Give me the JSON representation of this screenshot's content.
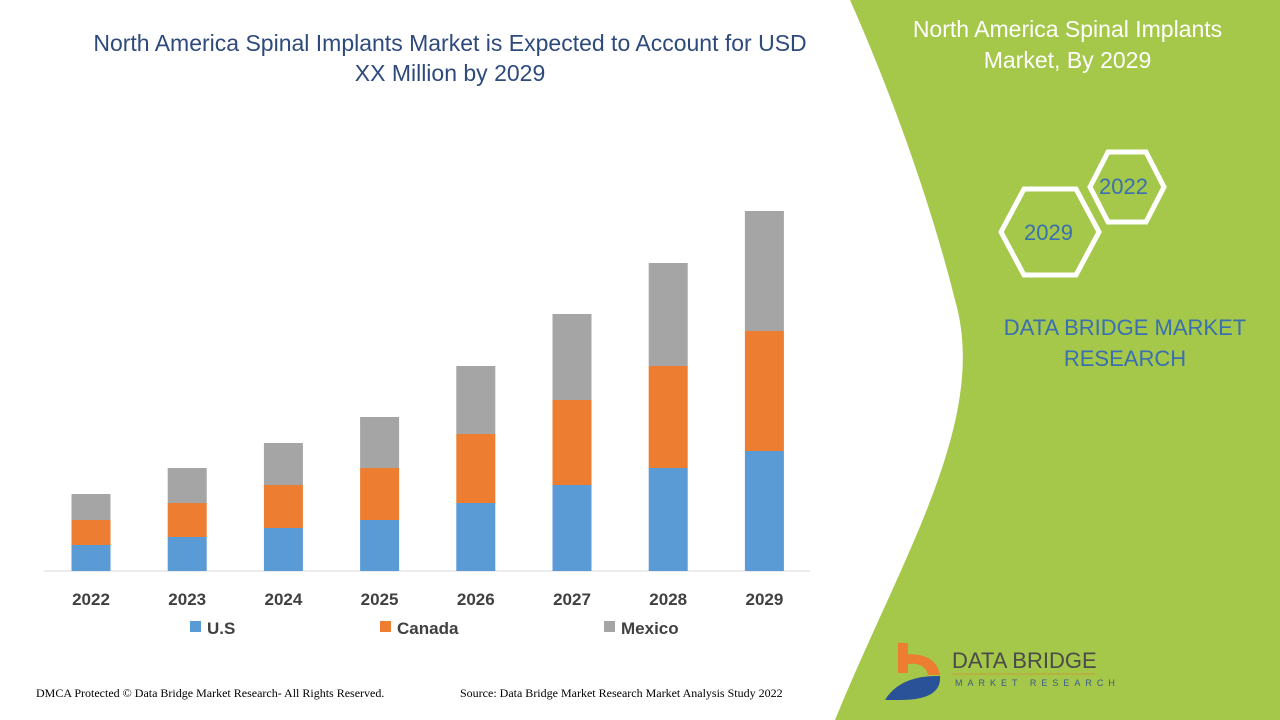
{
  "title": "North America Spinal Implants Market is Expected to Account for USD XX Million by 2029",
  "side_panel": {
    "title": "North America Spinal Implants Market, By 2029",
    "hex_years": [
      "2022",
      "2029"
    ],
    "brand": "DATA BRIDGE MARKET RESEARCH",
    "panel_color": "#a5c84a"
  },
  "logo": {
    "name": "DATA BRIDGE",
    "sub": "MARKET RESEARCH"
  },
  "footer": {
    "copyright": "DMCA Protected © Data Bridge Market Research- All Rights Reserved.",
    "source": "Source: Data Bridge Market Research Market Analysis Study 2022"
  },
  "chart_data": {
    "type": "bar",
    "stacked": true,
    "categories": [
      "2022",
      "2023",
      "2024",
      "2025",
      "2026",
      "2027",
      "2028",
      "2029"
    ],
    "series": [
      {
        "name": "U.S",
        "color": "#5b9bd5",
        "values": [
          26,
          34,
          43,
          51,
          68,
          86,
          103,
          120
        ]
      },
      {
        "name": "Canada",
        "color": "#ed7d31",
        "values": [
          25,
          34,
          43,
          52,
          69,
          85,
          102,
          120
        ]
      },
      {
        "name": "Mexico",
        "color": "#a5a5a5",
        "values": [
          26,
          35,
          42,
          51,
          68,
          86,
          103,
          120
        ]
      }
    ],
    "note": "",
    "legend": "bottom",
    "grid": false
  }
}
